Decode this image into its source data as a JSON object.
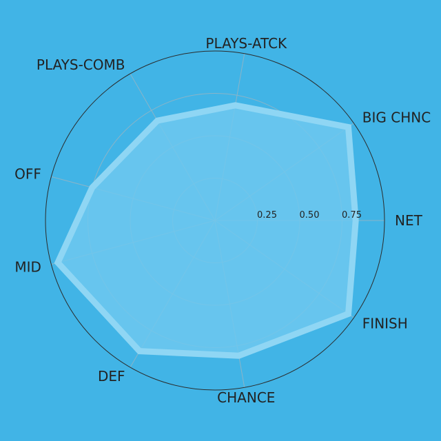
{
  "chart_data": {
    "type": "radar",
    "axes": [
      "NET",
      "BIG CHNC",
      "PLAYS-ATCK",
      "PLAYS-COMB",
      "OFF",
      "MID",
      "DEF",
      "CHANCE",
      "FINISH"
    ],
    "axis_angles_deg": [
      0,
      35,
      80,
      120,
      165,
      195,
      240,
      280,
      325
    ],
    "values": [
      0.83,
      0.96,
      0.69,
      0.68,
      0.75,
      0.96,
      0.89,
      0.81,
      0.96
    ],
    "rlim": [
      0,
      1
    ],
    "radial_ticks": [
      0.25,
      0.5,
      0.75
    ],
    "radial_tick_labels": [
      "0.25",
      "0.50",
      "0.75"
    ],
    "grid": true,
    "colors": {
      "background": "#41b4e6",
      "fill": "#6ec8ee",
      "outline": "#8fd6f4",
      "grid": "#8ab4c8",
      "outer_ring": "#2a2a2a",
      "text": "#222222"
    }
  }
}
